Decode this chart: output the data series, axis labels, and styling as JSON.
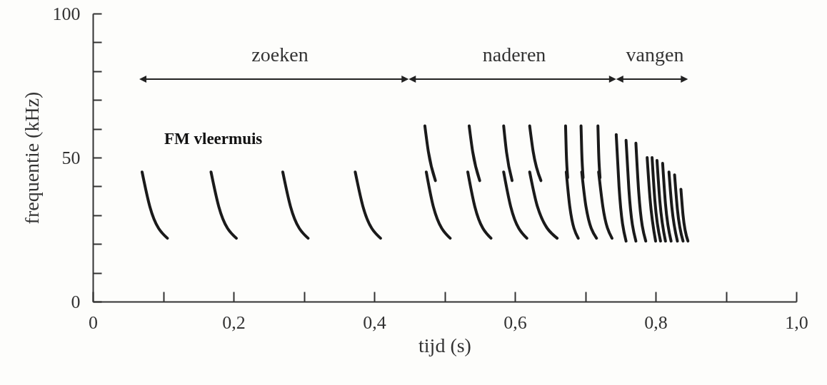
{
  "chart_data": {
    "type": "line",
    "xlabel": "tijd (s)",
    "ylabel": "frequentie (kHz)",
    "xlim": [
      0,
      1.0
    ],
    "ylim": [
      0,
      100
    ],
    "xticks": [
      0,
      {
        "value": 0.1,
        "label": null
      },
      {
        "value": 0.2,
        "label": "0,2"
      },
      {
        "value": 0.3,
        "label": null
      },
      {
        "value": 0.4,
        "label": "0,4"
      },
      {
        "value": 0.5,
        "label": null
      },
      {
        "value": 0.6,
        "label": "0,6"
      },
      {
        "value": 0.7,
        "label": null
      },
      {
        "value": 0.8,
        "label": "0,8"
      },
      {
        "value": 0.9,
        "label": null
      },
      {
        "value": 1.0,
        "label": "1,0"
      }
    ],
    "yticks": [
      0,
      {
        "value": 10,
        "label": null
      },
      {
        "value": 20,
        "label": null
      },
      {
        "value": 30,
        "label": null
      },
      {
        "value": 40,
        "label": null
      },
      50,
      {
        "value": 60,
        "label": null
      },
      {
        "value": 70,
        "label": null
      },
      {
        "value": 80,
        "label": null
      },
      {
        "value": 90,
        "label": null
      },
      100
    ],
    "grid": false,
    "marker": "none",
    "line_style": "solid",
    "annotations": [
      "zoeken",
      "naderen",
      "vangen",
      "FM vleermuis"
    ],
    "series": [
      {
        "color": "#1a1a1a",
        "x": [
          0.07,
          0.081,
          0.106
        ],
        "values": [
          45,
          33,
          22
        ]
      },
      {
        "color": "#1a1a1a",
        "x": [
          0.168,
          0.179,
          0.204
        ],
        "values": [
          45,
          33,
          22
        ]
      },
      {
        "color": "#1a1a1a",
        "x": [
          0.27,
          0.281,
          0.306
        ],
        "values": [
          45,
          33,
          22
        ]
      },
      {
        "color": "#1a1a1a",
        "x": [
          0.373,
          0.384,
          0.409
        ],
        "values": [
          45,
          33,
          22
        ]
      },
      {
        "color": "#1a1a1a",
        "x": [
          0.472,
          0.477,
          0.487
        ],
        "values": [
          61,
          52,
          42
        ]
      },
      {
        "color": "#1a1a1a",
        "x": [
          0.474,
          0.484,
          0.508
        ],
        "values": [
          45,
          33,
          22
        ]
      },
      {
        "color": "#1a1a1a",
        "x": [
          0.535,
          0.54,
          0.55
        ],
        "values": [
          61,
          52,
          42
        ]
      },
      {
        "color": "#1a1a1a",
        "x": [
          0.533,
          0.543,
          0.566
        ],
        "values": [
          45,
          33,
          22
        ]
      },
      {
        "color": "#1a1a1a",
        "x": [
          0.584,
          0.588,
          0.596
        ],
        "values": [
          61,
          52,
          42
        ]
      },
      {
        "color": "#1a1a1a",
        "x": [
          0.584,
          0.594,
          0.617
        ],
        "values": [
          45,
          33,
          22
        ]
      },
      {
        "color": "#1a1a1a",
        "x": [
          0.621,
          0.626,
          0.637
        ],
        "values": [
          61,
          52,
          42
        ]
      },
      {
        "color": "#1a1a1a",
        "x": [
          0.621,
          0.632,
          0.66
        ],
        "values": [
          45,
          33,
          22
        ]
      },
      {
        "color": "#1a1a1a",
        "x": [
          0.672,
          0.673,
          0.675
        ],
        "values": [
          61,
          52,
          43
        ]
      },
      {
        "color": "#1a1a1a",
        "x": [
          0.673,
          0.678,
          0.69
        ],
        "values": [
          45,
          33,
          22
        ]
      },
      {
        "color": "#1a1a1a",
        "x": [
          0.694,
          0.695,
          0.697
        ],
        "values": [
          61,
          52,
          43
        ]
      },
      {
        "color": "#1a1a1a",
        "x": [
          0.695,
          0.701,
          0.716
        ],
        "values": [
          45,
          33,
          22
        ]
      },
      {
        "color": "#1a1a1a",
        "x": [
          0.718,
          0.719,
          0.721
        ],
        "values": [
          61,
          52,
          43
        ]
      },
      {
        "color": "#1a1a1a",
        "x": [
          0.719,
          0.725,
          0.738
        ],
        "values": [
          45,
          33,
          22
        ]
      },
      {
        "color": "#1a1a1a",
        "x": [
          0.744,
          0.748,
          0.758
        ],
        "values": [
          58,
          40,
          21
        ]
      },
      {
        "color": "#1a1a1a",
        "x": [
          0.758,
          0.762,
          0.772
        ],
        "values": [
          56,
          39,
          21
        ]
      },
      {
        "color": "#1a1a1a",
        "x": [
          0.772,
          0.776,
          0.786
        ],
        "values": [
          55,
          38,
          21
        ]
      },
      {
        "color": "#1a1a1a",
        "x": [
          0.788,
          0.792,
          0.8
        ],
        "values": [
          50,
          36,
          21
        ]
      },
      {
        "color": "#1a1a1a",
        "x": [
          0.795,
          0.799,
          0.807
        ],
        "values": [
          50,
          35,
          21
        ]
      },
      {
        "color": "#1a1a1a",
        "x": [
          0.802,
          0.806,
          0.814
        ],
        "values": [
          49,
          35,
          21
        ]
      },
      {
        "color": "#1a1a1a",
        "x": [
          0.81,
          0.814,
          0.822
        ],
        "values": [
          48,
          34,
          21
        ]
      },
      {
        "color": "#1a1a1a",
        "x": [
          0.819,
          0.823,
          0.831
        ],
        "values": [
          45,
          33,
          21
        ]
      },
      {
        "color": "#1a1a1a",
        "x": [
          0.827,
          0.831,
          0.839
        ],
        "values": [
          44,
          32,
          21
        ]
      },
      {
        "color": "#1a1a1a",
        "x": [
          0.836,
          0.839,
          0.846
        ],
        "values": [
          39,
          30,
          21
        ]
      }
    ]
  }
}
